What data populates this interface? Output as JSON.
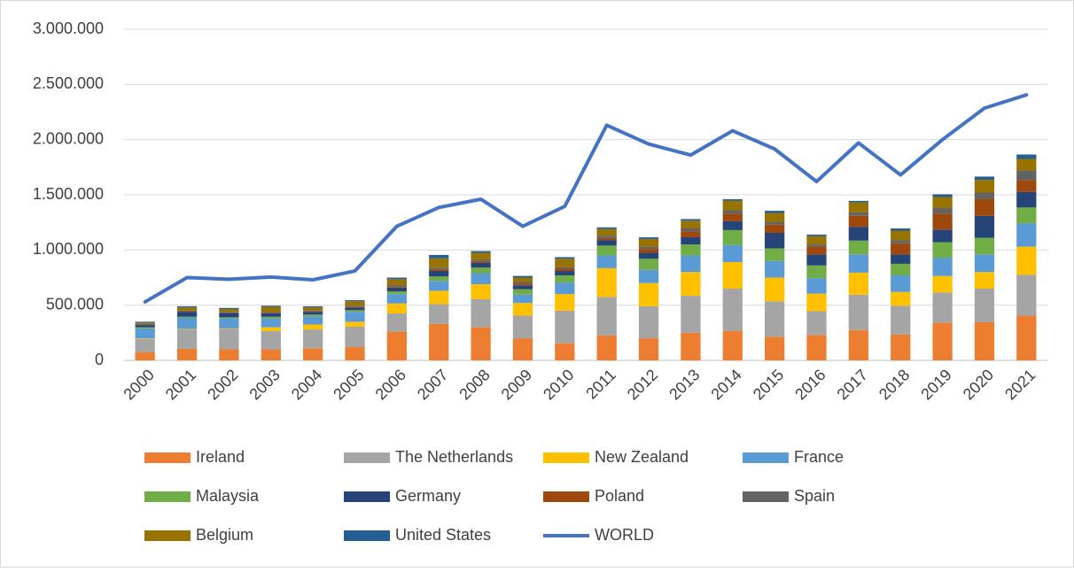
{
  "chart_data": {
    "type": "bar",
    "stacked": true,
    "categories": [
      "2000",
      "2001",
      "2002",
      "2003",
      "2004",
      "2005",
      "2006",
      "2007",
      "2008",
      "2009",
      "2010",
      "2011",
      "2012",
      "2013",
      "2014",
      "2015",
      "2016",
      "2017",
      "2018",
      "2019",
      "2020",
      "2021"
    ],
    "series": [
      {
        "name": "Ireland",
        "color": "#ed7d31",
        "values": [
          75000,
          105000,
          100000,
          100000,
          110000,
          120000,
          260000,
          330000,
          300000,
          200000,
          155000,
          225000,
          200000,
          250000,
          265000,
          215000,
          230000,
          275000,
          235000,
          340000,
          345000,
          405000
        ]
      },
      {
        "name": "The Netherlands",
        "color": "#a5a5a5",
        "values": [
          120000,
          175000,
          185000,
          165000,
          170000,
          185000,
          165000,
          180000,
          255000,
          205000,
          295000,
          350000,
          290000,
          335000,
          385000,
          320000,
          215000,
          320000,
          260000,
          275000,
          305000,
          370000
        ]
      },
      {
        "name": "New Zealand",
        "color": "#ffc000",
        "values": [
          5000,
          5000,
          5000,
          35000,
          45000,
          45000,
          90000,
          120000,
          135000,
          115000,
          150000,
          260000,
          210000,
          215000,
          240000,
          215000,
          160000,
          200000,
          125000,
          150000,
          150000,
          255000
        ]
      },
      {
        "name": "France",
        "color": "#5b9bd5",
        "values": [
          90000,
          100000,
          90000,
          80000,
          75000,
          90000,
          85000,
          90000,
          100000,
          75000,
          105000,
          115000,
          120000,
          150000,
          155000,
          150000,
          140000,
          165000,
          150000,
          165000,
          160000,
          210000
        ]
      },
      {
        "name": "Malaysia",
        "color": "#70ad47",
        "values": [
          10000,
          10000,
          10000,
          15000,
          15000,
          15000,
          25000,
          40000,
          50000,
          50000,
          65000,
          90000,
          100000,
          100000,
          135000,
          115000,
          115000,
          125000,
          105000,
          140000,
          150000,
          145000
        ]
      },
      {
        "name": "Germany",
        "color": "#264478",
        "values": [
          20000,
          45000,
          40000,
          30000,
          25000,
          25000,
          35000,
          50000,
          45000,
          35000,
          40000,
          50000,
          55000,
          65000,
          80000,
          140000,
          100000,
          125000,
          85000,
          115000,
          200000,
          140000
        ]
      },
      {
        "name": "Poland",
        "color": "#9e480e",
        "values": [
          5000,
          5000,
          5000,
          7000,
          8000,
          8000,
          12000,
          15000,
          15000,
          15000,
          20000,
          20000,
          35000,
          55000,
          70000,
          75000,
          70000,
          100000,
          100000,
          145000,
          150000,
          110000
        ]
      },
      {
        "name": "Spain",
        "color": "#636363",
        "values": [
          5000,
          5000,
          5000,
          8000,
          7000,
          7000,
          13000,
          15000,
          15000,
          15000,
          15000,
          20000,
          20000,
          25000,
          30000,
          25000,
          20000,
          30000,
          30000,
          50000,
          60000,
          85000
        ]
      },
      {
        "name": "Belgium",
        "color": "#997300",
        "values": [
          10000,
          30000,
          25000,
          45000,
          25000,
          40000,
          50000,
          85000,
          60000,
          40000,
          75000,
          60000,
          70000,
          70000,
          85000,
          80000,
          75000,
          90000,
          85000,
          100000,
          115000,
          105000
        ]
      },
      {
        "name": "United States",
        "color": "#255e91",
        "values": [
          10000,
          10000,
          10000,
          10000,
          10000,
          10000,
          15000,
          30000,
          15000,
          15000,
          15000,
          15000,
          15000,
          15000,
          15000,
          20000,
          15000,
          15000,
          20000,
          25000,
          30000,
          40000
        ]
      },
      {
        "name": "WORLD",
        "color": "#4472c4",
        "type": "line",
        "values": [
          530000,
          750000,
          735000,
          755000,
          730000,
          810000,
          1215000,
          1385000,
          1460000,
          1215000,
          1395000,
          2130000,
          1960000,
          1860000,
          2080000,
          1915000,
          1620000,
          1970000,
          1680000,
          2000000,
          2285000,
          2405000
        ]
      }
    ],
    "ylim": [
      0,
      3000000
    ],
    "yticks": [
      0,
      {
        "value": 500000,
        "label": "500.000"
      },
      {
        "value": 1000000,
        "label": "1.000.000"
      },
      {
        "value": 1500000,
        "label": "1.500.000"
      },
      {
        "value": 2000000,
        "label": "2.000.000"
      },
      {
        "value": 2500000,
        "label": "2.500.000"
      },
      {
        "value": 3000000,
        "label": "3.000.000"
      }
    ],
    "grid": true,
    "legend": "bottom"
  }
}
